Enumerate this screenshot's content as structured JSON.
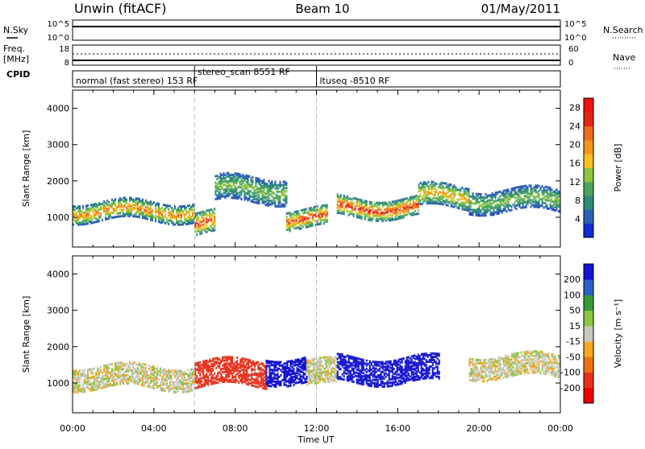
{
  "header": {
    "station": "Unwin (fitACF)",
    "beam": "Beam 10",
    "date": "01/May/2011"
  },
  "status_panel": {
    "left_labels": [
      "N.Sky",
      "Freq.",
      "[MHz]",
      "CPID"
    ],
    "nsky_ticks": [
      "10^5",
      "10^0"
    ],
    "nsearch_ticks": [
      "10^5",
      "10^0"
    ],
    "freq_ticks": [
      "18",
      "8"
    ],
    "nave_ticks": [
      "60",
      "0"
    ],
    "right_labels": [
      "N.Search",
      "Nave"
    ],
    "cpid_segments": [
      {
        "label": "normal (fast stereo) 153 RF",
        "start_hour": 0
      },
      {
        "label": "stereo_scan 8551 RF",
        "start_hour": 6
      },
      {
        "label": "ltuseq -8510 RF",
        "start_hour": 12
      }
    ]
  },
  "colors": {
    "power": [
      "#0f2bd6",
      "#2c5fb8",
      "#2f8a7a",
      "#4ea45c",
      "#8cc63f",
      "#f3c220",
      "#f5941d",
      "#f06a18",
      "#e3241a",
      "#f01010"
    ],
    "velocity": [
      "#1414d2",
      "#2a5ec9",
      "#3a9a3a",
      "#8ac640",
      "#c8c8c0",
      "#f5a820",
      "#f07010",
      "#e8301a",
      "#f00000"
    ],
    "gray": "#c8c8c0"
  },
  "chart_data": [
    {
      "type": "heatmap",
      "name": "power-panel",
      "ylabel": "Slant Range [km]",
      "xlabel": "Time UT",
      "x_range_hours": [
        0,
        24
      ],
      "ylim": [
        180,
        4500
      ],
      "x_ticks": [
        "00:00",
        "04:00",
        "08:00",
        "12:00",
        "16:00",
        "20:00",
        "00:00"
      ],
      "y_ticks": [
        1000,
        2000,
        3000,
        4000
      ],
      "colorbar": {
        "label": "Power [dB]",
        "ticks": [
          4,
          8,
          12,
          16,
          20,
          24,
          28
        ],
        "range": [
          0,
          30
        ]
      },
      "vertical_markers_hours": [
        6,
        12
      ],
      "echo_bands": [
        {
          "start": 0.0,
          "end": 6.0,
          "center_km": 1200,
          "width_km": 500,
          "peak_db": 22
        },
        {
          "start": 6.0,
          "end": 7.0,
          "center_km": 900,
          "width_km": 600,
          "peak_db": 26
        },
        {
          "start": 7.0,
          "end": 10.5,
          "center_km": 1800,
          "width_km": 700,
          "peak_db": 14
        },
        {
          "start": 10.5,
          "end": 12.5,
          "center_km": 1000,
          "width_km": 500,
          "peak_db": 26
        },
        {
          "start": 13.0,
          "end": 17.0,
          "center_km": 1300,
          "width_km": 500,
          "peak_db": 27
        },
        {
          "start": 17.0,
          "end": 19.5,
          "center_km": 1600,
          "width_km": 600,
          "peak_db": 20
        },
        {
          "start": 19.5,
          "end": 24.0,
          "center_km": 1500,
          "width_km": 600,
          "peak_db": 14
        }
      ]
    },
    {
      "type": "heatmap",
      "name": "velocity-panel",
      "ylabel": "Slant Range [km]",
      "xlabel": "Time UT",
      "x_range_hours": [
        0,
        24
      ],
      "ylim": [
        180,
        4500
      ],
      "x_ticks": [
        "00:00",
        "04:00",
        "08:00",
        "12:00",
        "16:00",
        "20:00",
        "00:00"
      ],
      "y_ticks": [
        1000,
        2000,
        3000,
        4000
      ],
      "colorbar": {
        "label": "Velocity [m s⁻¹]",
        "ticks": [
          200,
          100,
          50,
          15,
          -15,
          -50,
          -100,
          -200
        ]
      },
      "vertical_markers_hours": [
        6,
        12
      ],
      "echo_bands": [
        {
          "start": 0.0,
          "end": 6.0,
          "center_km": 1200,
          "width_km": 600,
          "velocity": 0
        },
        {
          "start": 6.0,
          "end": 9.5,
          "center_km": 1300,
          "width_km": 700,
          "velocity": -150
        },
        {
          "start": 9.5,
          "end": 11.5,
          "center_km": 1400,
          "width_km": 700,
          "velocity": 180
        },
        {
          "start": 11.5,
          "end": 13.0,
          "center_km": 1300,
          "width_km": 700,
          "velocity": 0
        },
        {
          "start": 13.0,
          "end": 18.0,
          "center_km": 1400,
          "width_km": 700,
          "velocity": 190
        },
        {
          "start": 19.5,
          "end": 24.0,
          "center_km": 1500,
          "width_km": 600,
          "velocity": 0
        }
      ]
    }
  ]
}
